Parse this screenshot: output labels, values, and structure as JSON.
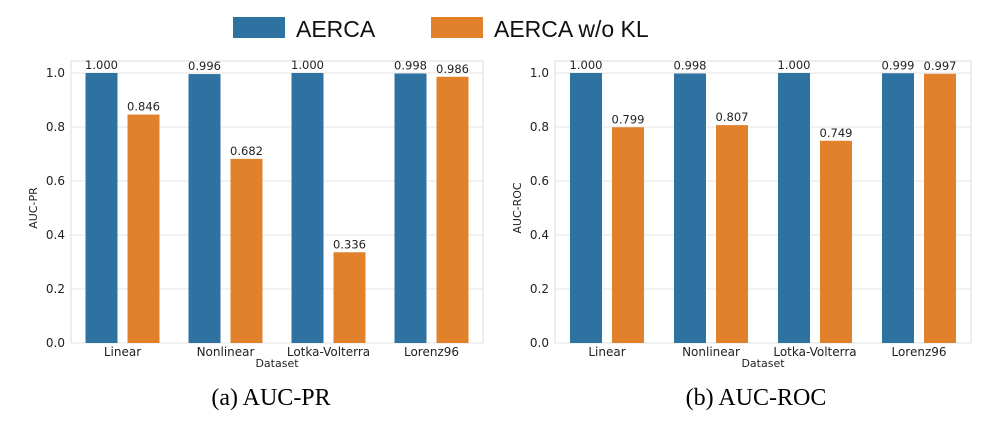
{
  "legend": [
    {
      "name": "AERCA",
      "color": "#2e72a2"
    },
    {
      "name": "AERCA w/o KL",
      "color": "#e1812c"
    }
  ],
  "chart_data": [
    {
      "type": "bar",
      "caption": "(a) AUC-PR",
      "xlabel": "Dataset",
      "ylabel": "AUC-PR",
      "ylim": [
        0,
        1.0
      ],
      "yticks": [
        "0.0",
        "0.2",
        "0.4",
        "0.6",
        "0.8",
        "1.0"
      ],
      "grid": true,
      "categories": [
        "Linear",
        "Nonlinear",
        "Lotka-Volterra",
        "Lorenz96"
      ],
      "series": [
        {
          "name": "AERCA",
          "values": [
            1.0,
            0.996,
            1.0,
            0.998
          ],
          "labels": [
            "1.000",
            "0.996",
            "1.000",
            "0.998"
          ]
        },
        {
          "name": "AERCA w/o KL",
          "values": [
            0.846,
            0.682,
            0.336,
            0.986
          ],
          "labels": [
            "0.846",
            "0.682",
            "0.336",
            "0.986"
          ]
        }
      ]
    },
    {
      "type": "bar",
      "caption": "(b) AUC-ROC",
      "xlabel": "Dataset",
      "ylabel": "AUC-ROC",
      "ylim": [
        0,
        1.0
      ],
      "yticks": [
        "0.0",
        "0.2",
        "0.4",
        "0.6",
        "0.8",
        "1.0"
      ],
      "grid": true,
      "categories": [
        "Linear",
        "Nonlinear",
        "Lotka-Volterra",
        "Lorenz96"
      ],
      "series": [
        {
          "name": "AERCA",
          "values": [
            1.0,
            0.998,
            1.0,
            0.999
          ],
          "labels": [
            "1.000",
            "0.998",
            "1.000",
            "0.999"
          ]
        },
        {
          "name": "AERCA w/o KL",
          "values": [
            0.799,
            0.807,
            0.749,
            0.997
          ],
          "labels": [
            "0.799",
            "0.807",
            "0.749",
            "0.997"
          ]
        }
      ]
    }
  ]
}
